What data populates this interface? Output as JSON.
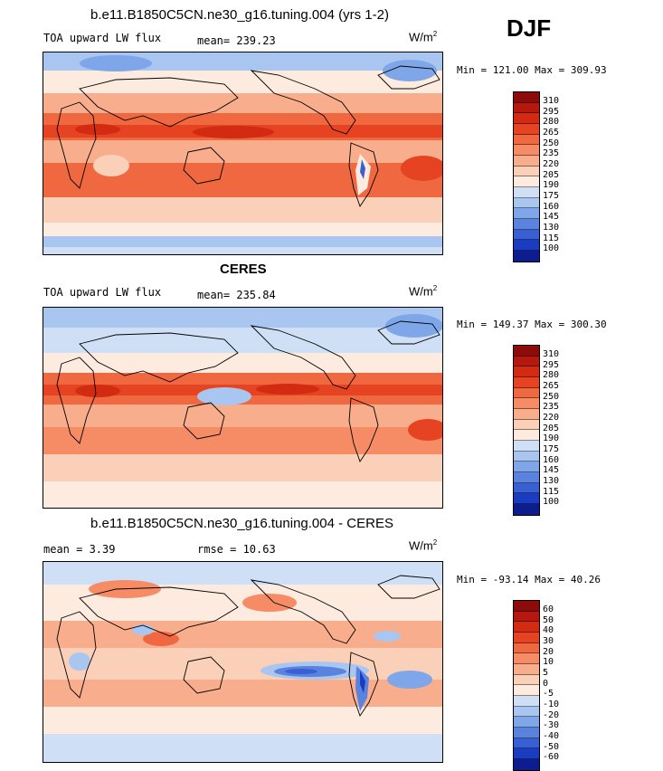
{
  "season": "DJF",
  "panels": [
    {
      "title": "b.e11.B1850C5CN.ne30_g16.tuning.004 (yrs 1-2)",
      "variable": "TOA upward LW flux",
      "stat_text": "mean= 239.23",
      "unit_base": "W/m",
      "unit_exp": "2",
      "minmax": "Min = 121.00 Max = 309.93",
      "colorbar": {
        "labels": [
          "310",
          "295",
          "280",
          "265",
          "250",
          "235",
          "220",
          "205",
          "190",
          "175",
          "160",
          "145",
          "130",
          "115",
          "100"
        ],
        "colors": [
          "#8e0b0b",
          "#b4180e",
          "#d32a12",
          "#e54322",
          "#f06840",
          "#f68c66",
          "#f8ad8d",
          "#fbd0b8",
          "#fdebe0",
          "#cfe0f6",
          "#a9c6f0",
          "#7ea6e9",
          "#5a83e0",
          "#3860d3",
          "#1a3cc0",
          "#0d1d8f"
        ]
      }
    },
    {
      "title": "CERES",
      "variable": "TOA upward LW flux",
      "stat_text": "mean= 235.84",
      "unit_base": "W/m",
      "unit_exp": "2",
      "minmax": "Min = 149.37 Max = 300.30",
      "colorbar": {
        "labels": [
          "310",
          "295",
          "280",
          "265",
          "250",
          "235",
          "220",
          "205",
          "190",
          "175",
          "160",
          "145",
          "130",
          "115",
          "100"
        ],
        "colors": [
          "#8e0b0b",
          "#b4180e",
          "#d32a12",
          "#e54322",
          "#f06840",
          "#f68c66",
          "#f8ad8d",
          "#fbd0b8",
          "#fdebe0",
          "#cfe0f6",
          "#a9c6f0",
          "#7ea6e9",
          "#5a83e0",
          "#3860d3",
          "#1a3cc0",
          "#0d1d8f"
        ]
      }
    },
    {
      "title": "b.e11.B1850C5CN.ne30_g16.tuning.004 - CERES",
      "mean_text": "mean =   3.39",
      "rmse_text": "rmse =  10.63",
      "unit_base": "W/m",
      "unit_exp": "2",
      "minmax": "Min = -93.14 Max =  40.26",
      "colorbar": {
        "labels": [
          "60",
          "50",
          "40",
          "30",
          "20",
          "10",
          "5",
          "0",
          "-5",
          "-10",
          "-20",
          "-30",
          "-40",
          "-50",
          "-60"
        ],
        "colors": [
          "#8e0b0b",
          "#b4180e",
          "#d32a12",
          "#e54322",
          "#f06840",
          "#f68c66",
          "#f8ad8d",
          "#fbd0b8",
          "#fdebe0",
          "#cfe0f6",
          "#a9c6f0",
          "#7ea6e9",
          "#5a83e0",
          "#3860d3",
          "#1a3cc0",
          "#0d1d8f"
        ]
      }
    }
  ]
}
